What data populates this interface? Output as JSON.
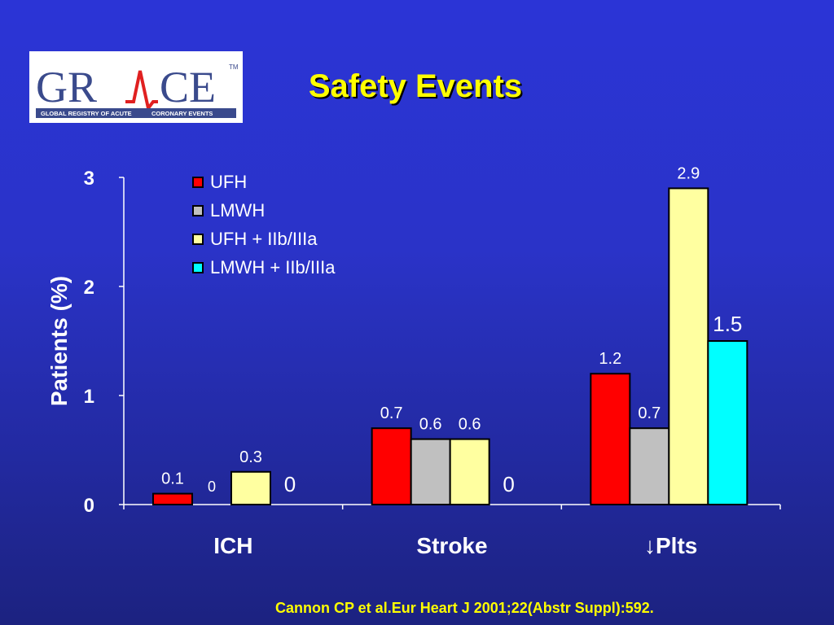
{
  "header": {
    "title": "Safety Events",
    "logo": {
      "wordmark_left": "GR",
      "wordmark_right": "CE",
      "trademark": "TM",
      "tagline_left": "GLOBAL REGISTRY OF ACUTE",
      "tagline_right": "CORONARY EVENTS",
      "colors": {
        "text": "#3a4a8c",
        "accent": "#e02020"
      }
    }
  },
  "footer": {
    "citation": "Cannon CP et al.Eur Heart J 2001;22(Abstr Suppl):592."
  },
  "colors": {
    "background": "#2a33c8",
    "title": "#ffff00",
    "text": "#ffffff",
    "axis": "#ffffff"
  },
  "chart_data": {
    "type": "bar",
    "title": "",
    "xlabel": "",
    "ylabel": "Patients (%)",
    "ylim": [
      0,
      3
    ],
    "yticks": [
      "0",
      "1",
      "2",
      "3"
    ],
    "categories": [
      "ICH",
      "Stroke",
      "↓Plts"
    ],
    "legend_position": "top-left",
    "series": [
      {
        "name": "UFH",
        "color": "#ff0000",
        "values": [
          0.1,
          0.7,
          1.2
        ],
        "labels": [
          "0.1",
          "0.7",
          "1.2"
        ]
      },
      {
        "name": "LMWH",
        "color": "#c0c0c0",
        "values": [
          0,
          0.6,
          0.7
        ],
        "labels": [
          "0",
          "0.6",
          "0.7"
        ]
      },
      {
        "name": "UFH + IIb/IIIa",
        "color": "#ffffa0",
        "values": [
          0.3,
          0.6,
          2.9
        ],
        "labels": [
          "0.3",
          "0.6",
          "2.9"
        ]
      },
      {
        "name": "LMWH + IIb/IIIa",
        "color": "#00ffff",
        "values": [
          0,
          0,
          1.5
        ],
        "labels": [
          "0",
          "0",
          "1.5"
        ]
      }
    ]
  }
}
